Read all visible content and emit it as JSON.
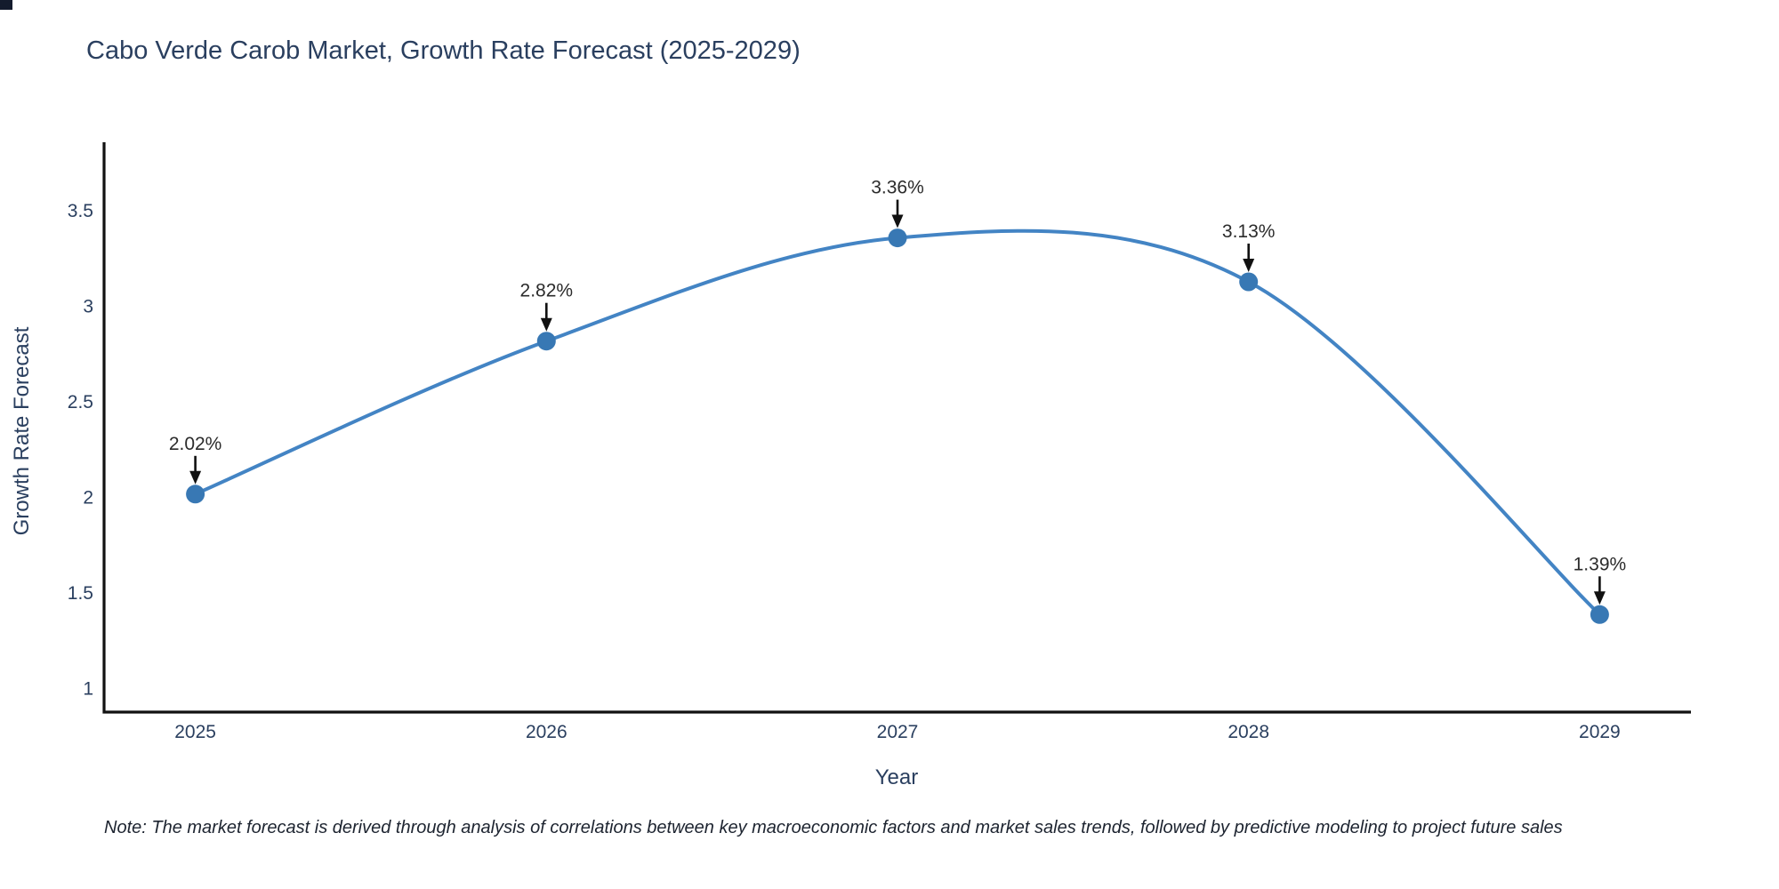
{
  "page": {
    "background": "#ffffff"
  },
  "corner_mark": {
    "color": "#141b2d"
  },
  "chart_data": {
    "type": "line",
    "title": "Cabo Verde Carob Market, Growth Rate Forecast (2025-2029)",
    "xlabel": "Year",
    "ylabel": "Growth Rate Forecast",
    "x": [
      2025,
      2026,
      2027,
      2028,
      2029
    ],
    "series": [
      {
        "name": "Growth Rate Forecast",
        "values": [
          2.02,
          2.82,
          3.36,
          3.13,
          1.39
        ]
      }
    ],
    "point_labels": [
      "2.02%",
      "2.82%",
      "3.36%",
      "3.13%",
      "1.39%"
    ],
    "x_tick_labels": [
      "2025",
      "2026",
      "2027",
      "2028",
      "2029"
    ],
    "y_tick_values": [
      1,
      1.5,
      2,
      2.5,
      3,
      3.5
    ],
    "y_tick_labels": [
      "1",
      "1.5",
      "2",
      "2.5",
      "3",
      "3.5"
    ],
    "xlim": [
      2024.74,
      2029.26
    ],
    "ylim": [
      0.88,
      3.86
    ],
    "grid": false,
    "legend_position": "none",
    "line_shape": "spline",
    "annotation_style": "arrow-down-to-point",
    "colors": {
      "line": "#4384c4",
      "marker": "#3878b4",
      "axis": "#111111",
      "tick_text": "#2a3f5f",
      "annotation_text": "#2b2b2b",
      "arrow": "#111111",
      "title_text": "#2a3f5f"
    }
  },
  "note": {
    "text": "Note: The market forecast is derived through analysis of correlations between key macroeconomic factors and market sales trends, followed by predictive modeling to project future sales"
  }
}
